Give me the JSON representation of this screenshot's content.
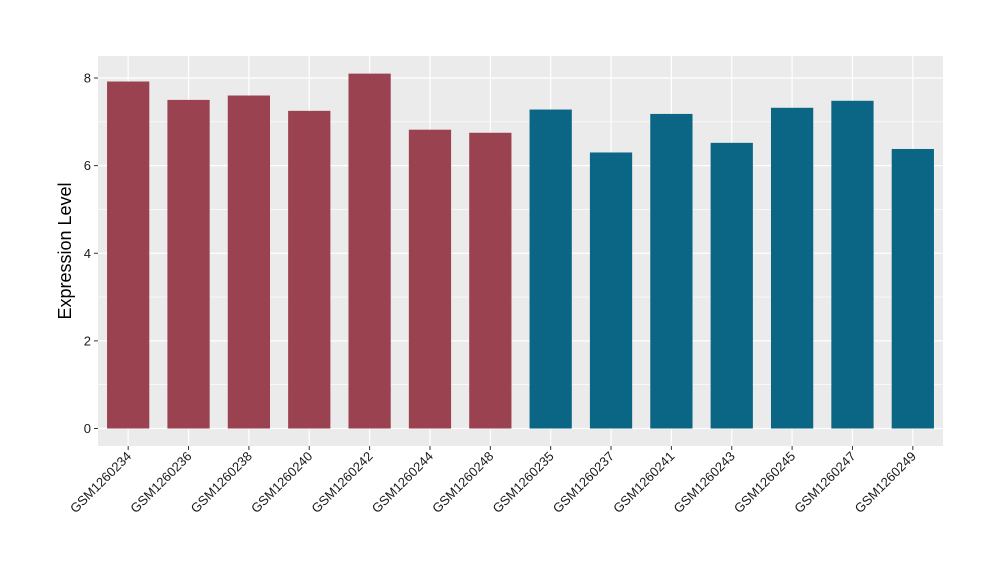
{
  "chart_data": {
    "type": "bar",
    "title": "",
    "xlabel": "",
    "ylabel": "Expression Level",
    "ylim": [
      0,
      8.4
    ],
    "yticks": [
      0,
      2,
      4,
      6,
      8
    ],
    "grid": true,
    "legend": "none",
    "categories": [
      "GSM1260234",
      "GSM1260236",
      "GSM1260238",
      "GSM1260240",
      "GSM1260242",
      "GSM1260244",
      "GSM1260248",
      "GSM1260235",
      "GSM1260237",
      "GSM1260241",
      "GSM1260243",
      "GSM1260245",
      "GSM1260247",
      "GSM1260249"
    ],
    "values": [
      7.92,
      7.5,
      7.6,
      7.25,
      8.1,
      6.82,
      6.75,
      7.28,
      6.3,
      7.18,
      6.52,
      7.32,
      7.48,
      6.38
    ],
    "group": [
      "A",
      "A",
      "A",
      "A",
      "A",
      "A",
      "A",
      "B",
      "B",
      "B",
      "B",
      "B",
      "B",
      "B"
    ],
    "colors": {
      "A": "#9A424F",
      "B": "#0B6584",
      "panel": "#EBEBEB",
      "grid": "#FFFFFF"
    }
  }
}
